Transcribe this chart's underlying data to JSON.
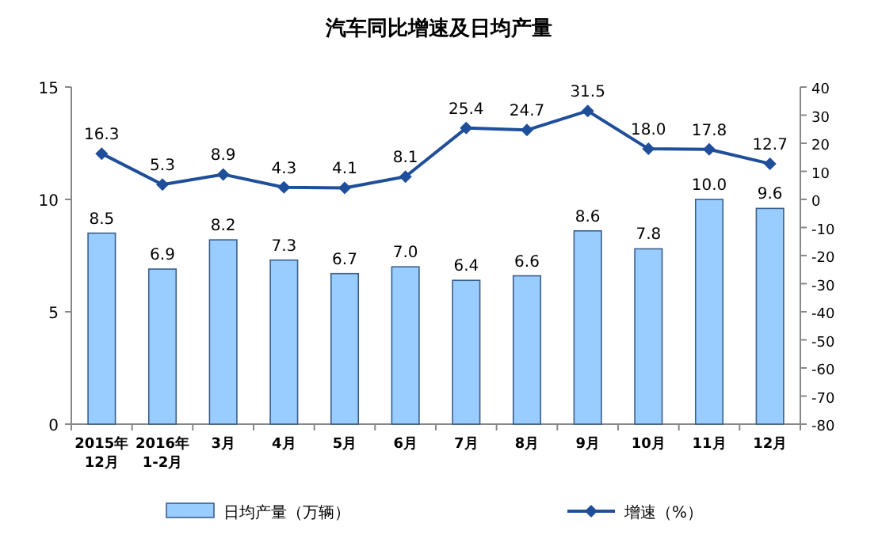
{
  "chart_data": {
    "type": "bar",
    "title": "汽车同比增速及日均产量",
    "categories": [
      "2015年12月",
      "2016年1-2月",
      "3月",
      "4月",
      "5月",
      "6月",
      "7月",
      "8月",
      "9月",
      "10月",
      "11月",
      "12月"
    ],
    "series": [
      {
        "name": "日均产量（万辆）",
        "color": "#99ccff",
        "values": [
          8.5,
          6.9,
          8.2,
          7.3,
          6.7,
          7.0,
          6.4,
          6.6,
          8.6,
          7.8,
          10.0,
          9.6
        ],
        "value_labels": [
          "8.5",
          "6.9",
          "8.2",
          "7.3",
          "6.7",
          "7.0",
          "6.4",
          "6.6",
          "8.6",
          "7.8",
          "10.0",
          "9.6"
        ]
      },
      {
        "name": "增速（%）",
        "type": "line",
        "axis": "y2",
        "color": "#1f4e9a",
        "marker": "diamond",
        "values": [
          16.3,
          5.3,
          8.9,
          4.3,
          4.1,
          8.1,
          25.4,
          24.7,
          31.5,
          18.0,
          17.8,
          12.7
        ],
        "value_labels": [
          "16.3",
          "5.3",
          "8.9",
          "4.3",
          "4.1",
          "8.1",
          "25.4",
          "24.7",
          "31.5",
          "18.0",
          "17.8",
          "12.7"
        ]
      }
    ],
    "ylim": [
      0,
      15
    ],
    "yticks": [
      0,
      5,
      10,
      15
    ],
    "y2lim": [
      -80,
      40
    ],
    "y2ticks": [
      -80,
      -70,
      -60,
      -50,
      -40,
      -30,
      -20,
      -10,
      0,
      10,
      20,
      30,
      40
    ],
    "legend": "bottom",
    "grid": false
  }
}
